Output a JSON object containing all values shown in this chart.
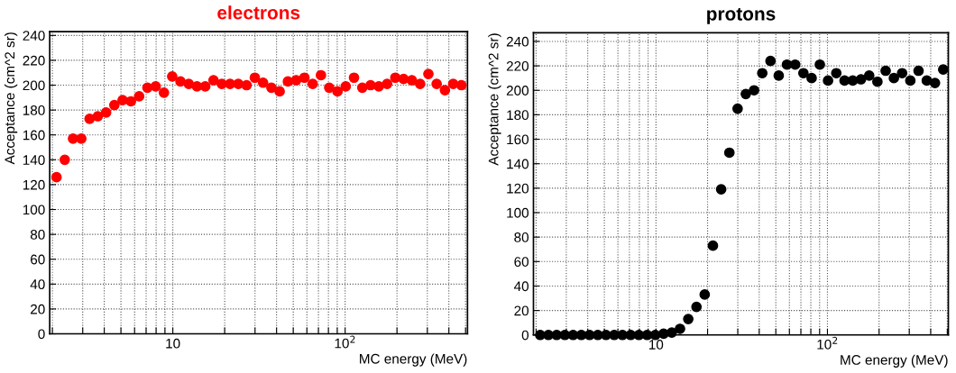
{
  "chart_data": [
    {
      "type": "scatter",
      "title": "electrons",
      "xlabel": "MC energy (MeV)",
      "ylabel": "Acceptance (cm^2 sr)",
      "log": "x",
      "grid": true,
      "marker": "circle",
      "xlim": [
        1.93,
        513
      ],
      "ylim": [
        0,
        243
      ],
      "xticks": [
        {
          "value": 2,
          "label": null
        },
        {
          "value": 3,
          "label": null
        },
        {
          "value": 4,
          "label": null
        },
        {
          "value": 5,
          "label": null
        },
        {
          "value": 6,
          "label": null
        },
        {
          "value": 7,
          "label": null
        },
        {
          "value": 8,
          "label": null
        },
        {
          "value": 9,
          "label": null
        },
        10,
        {
          "value": 20,
          "label": null
        },
        {
          "value": 30,
          "label": null
        },
        {
          "value": 40,
          "label": null
        },
        {
          "value": 50,
          "label": null
        },
        {
          "value": 60,
          "label": null
        },
        {
          "value": 70,
          "label": null
        },
        {
          "value": 80,
          "label": null
        },
        {
          "value": 90,
          "label": null
        },
        {
          "value": 100,
          "label": "10$^{2}$"
        },
        {
          "value": 200,
          "label": null
        },
        {
          "value": 300,
          "label": null
        },
        {
          "value": 400,
          "label": null
        },
        {
          "value": 500,
          "label": null
        }
      ],
      "yticks": [
        0,
        20,
        40,
        60,
        80,
        100,
        120,
        140,
        160,
        180,
        200,
        220,
        240
      ],
      "x": [
        2.114,
        2.36,
        2.636,
        2.944,
        3.288,
        3.671,
        4.1,
        4.579,
        5.113,
        5.711,
        6.377,
        7.122,
        7.953,
        8.882,
        9.919,
        11.08,
        12.37,
        13.81,
        15.43,
        17.23,
        19.24,
        21.49,
        24.0,
        26.8,
        29.93,
        33.42,
        37.33,
        41.68,
        46.55,
        51.99,
        58.06,
        64.84,
        72.41,
        80.86,
        90.3,
        100.8,
        112.6,
        125.8,
        140.5,
        156.9,
        175.2,
        195.6,
        218.5,
        244.0,
        272.5,
        304.3,
        339.8,
        379.5,
        423.8,
        473.3
      ],
      "series": [
        {
          "color": "#ff0000",
          "values": [
            126,
            140,
            157,
            157,
            173,
            175,
            178,
            184,
            188,
            187,
            191,
            198,
            199,
            194,
            207,
            203,
            201,
            199,
            199,
            204,
            201,
            201,
            201,
            200,
            206,
            202,
            198,
            195,
            203,
            204,
            206,
            201,
            208,
            198,
            195,
            199,
            206,
            198,
            200,
            199,
            201,
            206,
            205,
            204,
            201,
            209,
            201,
            196,
            201,
            200
          ]
        }
      ]
    },
    {
      "type": "scatter",
      "title": "protons",
      "xlabel": "MC energy (MeV)",
      "ylabel": "Acceptance (cm^2 sr)",
      "log": "x",
      "grid": true,
      "marker": "circle",
      "xlim": [
        1.93,
        507
      ],
      "ylim": [
        0,
        247
      ],
      "xticks": [
        {
          "value": 2,
          "label": null
        },
        {
          "value": 3,
          "label": null
        },
        {
          "value": 4,
          "label": null
        },
        {
          "value": 5,
          "label": null
        },
        {
          "value": 6,
          "label": null
        },
        {
          "value": 7,
          "label": null
        },
        {
          "value": 8,
          "label": null
        },
        {
          "value": 9,
          "label": null
        },
        10,
        {
          "value": 20,
          "label": null
        },
        {
          "value": 30,
          "label": null
        },
        {
          "value": 40,
          "label": null
        },
        {
          "value": 50,
          "label": null
        },
        {
          "value": 60,
          "label": null
        },
        {
          "value": 70,
          "label": null
        },
        {
          "value": 80,
          "label": null
        },
        {
          "value": 90,
          "label": null
        },
        {
          "value": 100,
          "label": "10$^{2}$"
        },
        {
          "value": 200,
          "label": null
        },
        {
          "value": 300,
          "label": null
        },
        {
          "value": 400,
          "label": null
        },
        {
          "value": 500,
          "label": null
        }
      ],
      "yticks": [
        0,
        20,
        40,
        60,
        80,
        100,
        120,
        140,
        160,
        180,
        200,
        220,
        240
      ],
      "x": [
        2.114,
        2.36,
        2.636,
        2.944,
        3.288,
        3.671,
        4.1,
        4.579,
        5.113,
        5.711,
        6.377,
        7.122,
        7.953,
        8.882,
        9.919,
        11.08,
        12.37,
        13.81,
        15.43,
        17.23,
        19.24,
        21.49,
        24.0,
        26.8,
        29.93,
        33.42,
        37.33,
        41.68,
        46.55,
        51.99,
        58.06,
        64.84,
        72.41,
        80.86,
        90.3,
        100.8,
        112.6,
        125.8,
        140.5,
        156.9,
        175.2,
        195.6,
        218.5,
        244.0,
        272.5,
        304.3,
        339.8,
        379.5,
        423.8,
        473.3
      ],
      "series": [
        {
          "color": "#000000",
          "values": [
            0,
            0,
            0,
            0,
            0,
            0,
            0,
            0,
            0,
            0,
            0,
            0,
            0,
            0,
            0,
            1,
            2,
            5,
            13,
            23,
            33,
            73,
            119,
            149,
            185,
            197,
            200,
            214,
            224,
            212,
            221,
            221,
            214,
            210,
            221,
            208,
            214,
            208,
            208,
            209,
            212,
            207,
            216,
            210,
            214,
            208,
            216,
            208,
            206,
            217
          ]
        }
      ]
    }
  ]
}
